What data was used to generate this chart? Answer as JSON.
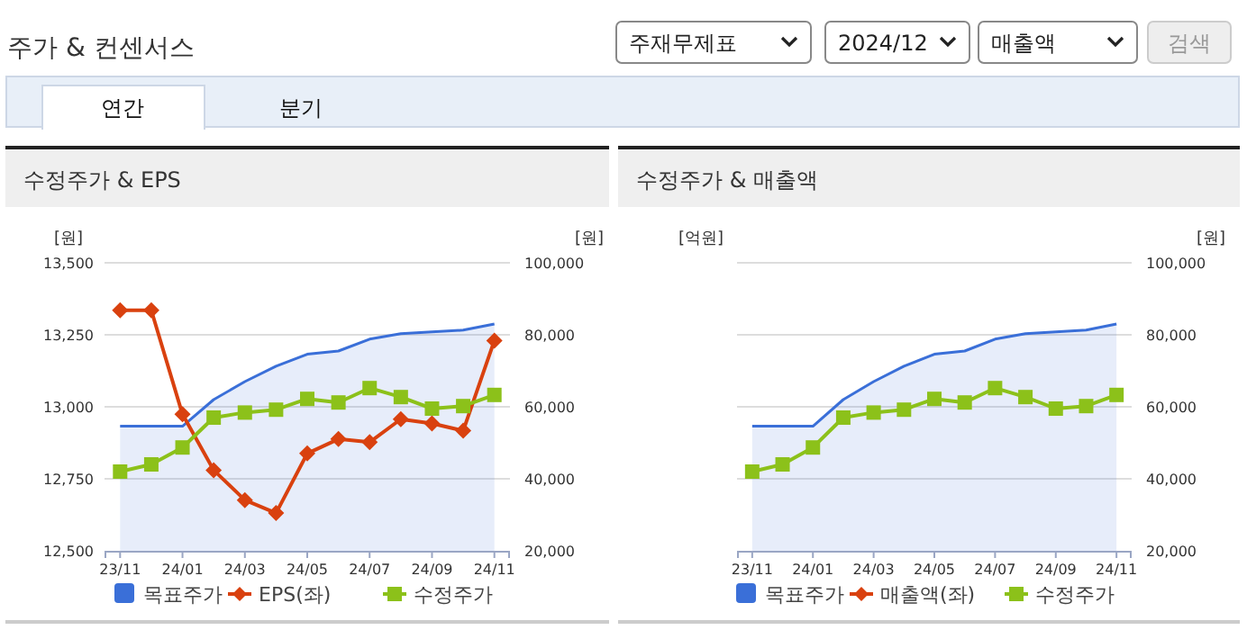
{
  "chart_data": [
    {
      "type": "line",
      "title": "수정주가 & EPS",
      "ylabel": "[원]",
      "y2label": "[원]",
      "annotations": [
        "주가 & 컨센서스",
        "주재무제표",
        "2024/12",
        "매출액",
        "검색",
        "연간",
        "분기"
      ],
      "categories": [
        "23/11",
        null,
        "24/01",
        null,
        "24/03",
        null,
        "24/05",
        null,
        "24/07",
        null,
        "24/09",
        null,
        "24/11"
      ],
      "ylim": [
        12500,
        13500
      ],
      "yticks": [
        {
          "value": 12500,
          "label": "12,500"
        },
        {
          "value": 12750,
          "label": "12,750"
        },
        {
          "value": 13000,
          "label": "13,000"
        },
        {
          "value": 13250,
          "label": "13,250"
        },
        {
          "value": 13500,
          "label": "13,500"
        }
      ],
      "y2lim": [
        20000,
        100000
      ],
      "y2ticks": [
        {
          "value": 20000,
          "label": "20,000"
        },
        {
          "value": 40000,
          "label": "40,000"
        },
        {
          "value": 60000,
          "label": "60,000"
        },
        {
          "value": 80000,
          "label": "80,000"
        },
        {
          "value": 100000,
          "label": "100,000"
        }
      ],
      "grid": "y",
      "legend": "bottom",
      "series": [
        {
          "name": "목표주가",
          "type": "area",
          "axis": "y2",
          "color": "#3a6fd8",
          "marker": "none",
          "values": [
            54600,
            54600,
            54600,
            62000,
            67000,
            71300,
            74600,
            75500,
            78800,
            80300,
            80800,
            81300,
            83000
          ]
        },
        {
          "name": "EPS(좌)",
          "type": "line",
          "axis": "y",
          "color": "#d9410f",
          "marker": "diamond",
          "values": [
            13335,
            13335,
            12974,
            12780,
            12676,
            12631,
            12838,
            12888,
            12877,
            12957,
            12942,
            12917,
            13230
          ]
        },
        {
          "name": "수정주가",
          "type": "line",
          "axis": "y2",
          "color": "#8cc11a",
          "marker": "square",
          "values": [
            42000,
            44000,
            48700,
            57000,
            58400,
            59200,
            62200,
            61200,
            65200,
            62700,
            59500,
            60200,
            63300
          ]
        }
      ]
    },
    {
      "type": "line",
      "title": "수정주가 & 매출액",
      "ylabel": "[억원]",
      "y2label": "[원]",
      "categories": [
        "23/11",
        null,
        "24/01",
        null,
        "24/03",
        null,
        "24/05",
        null,
        "24/07",
        null,
        "24/09",
        null,
        "24/11"
      ],
      "y2lim": [
        20000,
        100000
      ],
      "y2ticks": [
        {
          "value": 20000,
          "label": "20,000"
        },
        {
          "value": 40000,
          "label": "40,000"
        },
        {
          "value": 60000,
          "label": "60,000"
        },
        {
          "value": 80000,
          "label": "80,000"
        },
        {
          "value": 100000,
          "label": "100,000"
        }
      ],
      "grid": "y",
      "legend": "bottom",
      "series": [
        {
          "name": "목표주가",
          "type": "area",
          "axis": "y2",
          "color": "#3a6fd8",
          "marker": "none",
          "values": [
            54600,
            54600,
            54600,
            62000,
            67000,
            71300,
            74600,
            75500,
            78800,
            80300,
            80800,
            81300,
            83000
          ]
        },
        {
          "name": "매출액(좌)",
          "type": "line",
          "axis": "y",
          "color": "#d9410f",
          "marker": "diamond",
          "values": [
            null,
            null,
            null,
            null,
            null,
            null,
            null,
            null,
            null,
            null,
            null,
            null,
            null
          ]
        },
        {
          "name": "수정주가",
          "type": "line",
          "axis": "y2",
          "color": "#8cc11a",
          "marker": "square",
          "values": [
            42000,
            44000,
            48700,
            57000,
            58400,
            59200,
            62200,
            61200,
            65200,
            62700,
            59500,
            60200,
            63300
          ]
        }
      ]
    }
  ]
}
